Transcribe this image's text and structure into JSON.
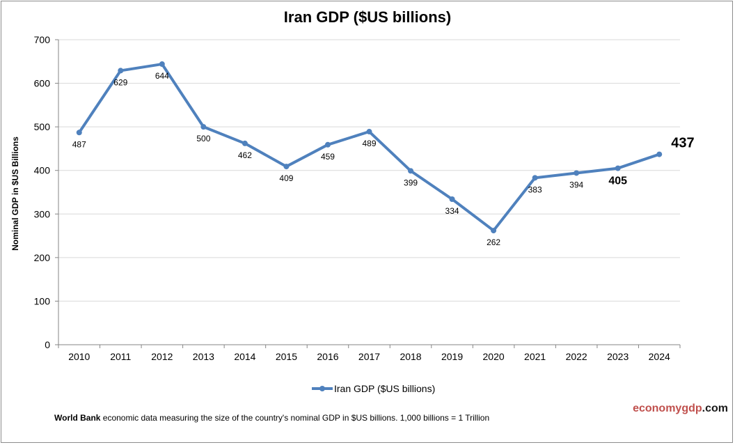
{
  "chart_data": {
    "type": "line",
    "title": "Iran GDP ($US billions)",
    "xlabel": "",
    "ylabel": "Nominal GDP in $US Billions",
    "categories": [
      "2010",
      "2011",
      "2012",
      "2013",
      "2014",
      "2015",
      "2016",
      "2017",
      "2018",
      "2019",
      "2020",
      "2021",
      "2022",
      "2023",
      "2024"
    ],
    "series": [
      {
        "name": "Iran GDP ($US billions)",
        "color": "#4f81bd",
        "values": [
          487,
          629,
          644,
          500,
          462,
          409,
          459,
          489,
          399,
          334,
          262,
          383,
          394,
          405,
          437
        ],
        "labels": [
          "487",
          "629",
          "644",
          "500",
          "462",
          "409",
          "459",
          "489",
          "399",
          "334",
          "262",
          "383",
          "394",
          "405",
          "437"
        ]
      }
    ],
    "ylim": [
      0,
      700
    ],
    "yticks": [
      "0",
      "100",
      "200",
      "300",
      "400",
      "500",
      "600",
      "700"
    ],
    "grid": true,
    "legend": "bottom"
  },
  "footer": {
    "source_bold": "World Bank",
    "source_text": " economic data  measuring the size of the country's nominal GDP in $US billions. 1,000 billions = 1 Trillion",
    "brand_part1": "economy",
    "brand_part2": "gdp",
    "brand_part3": ".com"
  }
}
